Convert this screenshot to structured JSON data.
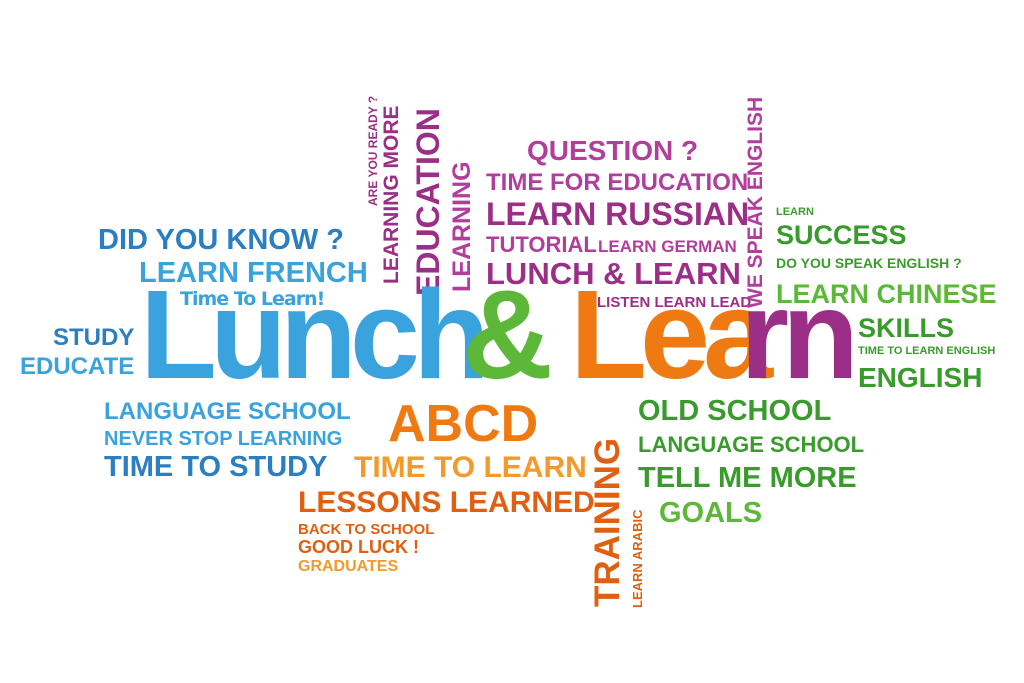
{
  "colors": {
    "blue": "#2a7fc3",
    "light_blue": "#3aa3dd",
    "purple": "#9b2f87",
    "magenta": "#b23e9c",
    "green": "#3a9b2d",
    "light_green": "#5db83a",
    "orange": "#ef7a12",
    "dark_orange": "#e15f10"
  },
  "headline": {
    "part1": "Lunch",
    "amp": "&",
    "part2_a": "Lea",
    "part2_b": "rn"
  },
  "words": {
    "did_you_know": "DID YOU KNOW ?",
    "learn_french": "LEARN FRENCH",
    "time_to_learn_script": "Time To Learn!",
    "study": "STUDY",
    "educate": "EDUCATE",
    "language_school_left": "LANGUAGE SCHOOL",
    "never_stop_learning": "NEVER STOP LEARNING",
    "time_to_study": "TIME TO STUDY",
    "are_you_ready": "ARE YOU READY ?",
    "learning_more": "LEARNING MORE",
    "education": "EDUCATION",
    "learning": "LEARNING",
    "question": "QUESTION ?",
    "time_for_education": "TIME FOR EDUCATION",
    "learn_russian": "LEARN RUSSIAN",
    "tutorial": "TUTORIAL",
    "learn_german": "LEARN GERMAN",
    "lunch_and_learn": "LUNCH & LEARN",
    "listen_learn_lead": "LISTEN LEARN LEAD",
    "we_speak_english": "WE SPEAK ENGLISH",
    "learn_small": "LEARN",
    "success": "SUCCESS",
    "do_you_speak_english": "DO YOU SPEAK ENGLISH ?",
    "learn_chinese": "LEARN CHINESE",
    "skills": "SKILLS",
    "time_to_learn_english": "TIME TO LEARN ENGLISH",
    "english": "ENGLISH",
    "abcd": "ABCD",
    "time_to_learn": "TIME TO LEARN",
    "lessons_learned": "LESSONS LEARNED",
    "back_to_school": "BACK TO SCHOOL",
    "good_luck": "GOOD LUCK !",
    "graduates": "GRADUATES",
    "training": "TRAINING",
    "learn_arabic": "LEARN ARABIC",
    "old_school": "OLD SCHOOL",
    "language_school_right": "LANGUAGE SCHOOL",
    "tell_me_more": "TELL ME MORE",
    "goals": "GOALS"
  }
}
